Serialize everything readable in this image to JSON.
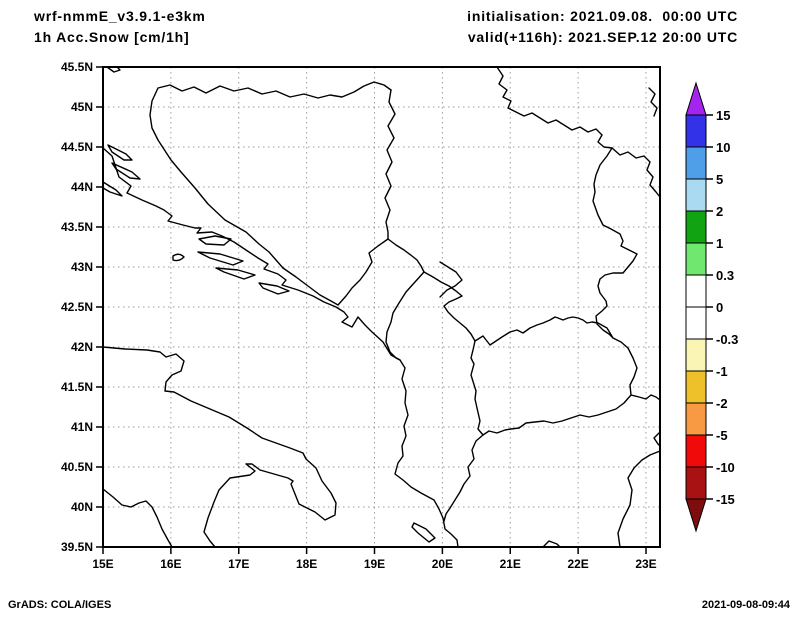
{
  "header": {
    "model": "wrf-nmmE_v3.9.1-e3km",
    "product": "1h Acc.Snow [cm/1h]",
    "init": "initialisation: 2021.09.08.  00:00 UTC",
    "valid": "valid(+116h): 2021.SEP.12 20:00 UTC"
  },
  "map": {
    "lat_ticks": [
      {
        "label": "45.5N",
        "lat": 45.5
      },
      {
        "label": "45N",
        "lat": 45
      },
      {
        "label": "44.5N",
        "lat": 44.5
      },
      {
        "label": "44N",
        "lat": 44
      },
      {
        "label": "43.5N",
        "lat": 43.5
      },
      {
        "label": "43N",
        "lat": 43
      },
      {
        "label": "42.5N",
        "lat": 42.5
      },
      {
        "label": "42N",
        "lat": 42
      },
      {
        "label": "41.5N",
        "lat": 41.5
      },
      {
        "label": "41N",
        "lat": 41
      },
      {
        "label": "40.5N",
        "lat": 40.5
      },
      {
        "label": "40N",
        "lat": 40
      },
      {
        "label": "39.5N",
        "lat": 39.5
      }
    ],
    "lon_ticks": [
      {
        "label": "15E",
        "lon": 15
      },
      {
        "label": "16E",
        "lon": 16
      },
      {
        "label": "17E",
        "lon": 17
      },
      {
        "label": "18E",
        "lon": 18
      },
      {
        "label": "19E",
        "lon": 19
      },
      {
        "label": "20E",
        "lon": 20
      },
      {
        "label": "21E",
        "lon": 21
      },
      {
        "label": "22E",
        "lon": 22
      },
      {
        "label": "23E",
        "lon": 23
      }
    ],
    "grid_lats": [
      45,
      44.5,
      44,
      43.5,
      43,
      42.5,
      42,
      41.5,
      41,
      40.5,
      40
    ],
    "grid_lons": [
      16,
      17,
      18,
      19,
      20,
      21,
      22,
      23
    ]
  },
  "colorbar": {
    "labels": [
      "15",
      "10",
      "5",
      "2",
      "1",
      "0.3",
      "0",
      "-0.3",
      "-1",
      "-2",
      "-5",
      "-10",
      "-15"
    ],
    "segment_colors": [
      "#3232e8",
      "#4f9fe8",
      "#aad9f2",
      "#12a312",
      "#70e870",
      "#ffffff",
      "#ffffff",
      "#faf5b4",
      "#eec029",
      "#f89943",
      "#f00a0a",
      "#a81212"
    ],
    "arrow_top_color": "#a424f0",
    "arrow_bottom_color": "#7e0e0e"
  },
  "footer": {
    "left": "GrADS: COLA/IGES",
    "right": "2021-09-08-09:44"
  }
}
